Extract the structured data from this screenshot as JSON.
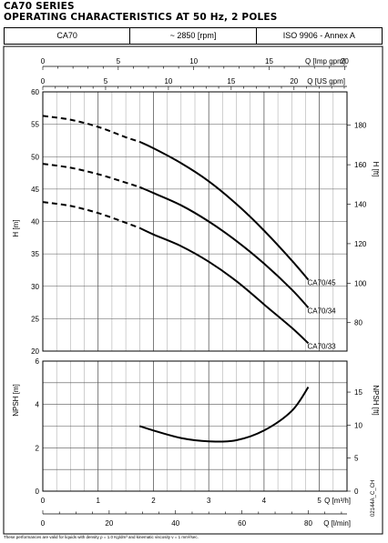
{
  "titles": {
    "line1": "CA70 SERIES",
    "line2": "OPERATING CHARACTERISTICS AT 50 Hz, 2 POLES"
  },
  "header": {
    "model": "CA70",
    "speed": "~ 2850 [rpm]",
    "standard": "ISO 9906 - Annex A"
  },
  "footer": "These performances are valid for liquids with density ρ = 1.0 Kg/dm³ and kinematic viscosity ν = 1 mm²/sec.",
  "drawing_code": "02144A_C_CH",
  "chart_data": [
    {
      "type": "line",
      "name": "head",
      "x_axis": {
        "label": "Q [m³/h]",
        "range": [
          0,
          5.5
        ],
        "ticks": [
          0,
          1,
          2,
          3,
          4,
          5
        ]
      },
      "x_top_imp": {
        "label": "Q [Imp gpm]",
        "range": [
          0,
          20.16
        ],
        "ticks": [
          0,
          5,
          10,
          15,
          20
        ],
        "labels": [
          "0",
          "5",
          "10",
          "15",
          "20"
        ]
      },
      "x_top_us": {
        "label": "Q [US gpm]",
        "range": [
          0,
          24.22
        ],
        "ticks": [
          0,
          5,
          10,
          15,
          20
        ],
        "labels": [
          "0",
          "5",
          "10",
          "15",
          "20"
        ]
      },
      "y_left": {
        "label": "H [m]",
        "range": [
          20,
          60
        ],
        "ticks": [
          20,
          25,
          30,
          35,
          40,
          45,
          50,
          55,
          60
        ],
        "labels": [
          "20",
          "25",
          "30",
          "35",
          "40",
          "45",
          "50",
          "55",
          "60"
        ]
      },
      "y_right": {
        "label": "H [ft]",
        "range": [
          65.6,
          196.9
        ],
        "ticks": [
          80,
          100,
          120,
          140,
          160,
          180
        ],
        "labels": [
          "80",
          "100",
          "120",
          "140",
          "160",
          "180"
        ]
      },
      "grid": true,
      "series": [
        {
          "name": "CA70/45",
          "x": [
            0,
            0.5,
            1.0,
            1.5,
            1.75,
            2.0,
            2.5,
            3.0,
            3.5,
            4.0,
            4.5,
            4.8
          ],
          "y": [
            56.3,
            55.7,
            54.6,
            53.0,
            52.3,
            51.3,
            49.0,
            46.2,
            42.7,
            38.6,
            34.0,
            31.0
          ],
          "dashed_until": 1.75
        },
        {
          "name": "CA70/34",
          "x": [
            0,
            0.5,
            1.0,
            1.5,
            1.75,
            2.0,
            2.5,
            3.0,
            3.5,
            4.0,
            4.5,
            4.8
          ],
          "y": [
            48.9,
            48.3,
            47.3,
            46.0,
            45.3,
            44.4,
            42.5,
            40.0,
            37.0,
            33.5,
            29.5,
            26.7
          ],
          "dashed_until": 1.75
        },
        {
          "name": "CA70/33",
          "x": [
            0,
            0.5,
            1.0,
            1.5,
            1.75,
            2.0,
            2.5,
            3.0,
            3.5,
            4.0,
            4.5,
            4.8
          ],
          "y": [
            43.0,
            42.4,
            41.3,
            39.8,
            39.0,
            38.0,
            36.2,
            33.8,
            30.8,
            27.2,
            23.6,
            21.2
          ],
          "dashed_until": 1.75
        }
      ]
    },
    {
      "type": "line",
      "name": "npsh",
      "x_axis": {
        "label": "Q [m³/h]",
        "range": [
          0,
          5.5
        ],
        "ticks": [
          0,
          1,
          2,
          3,
          4,
          5
        ],
        "labels": [
          "0",
          "1",
          "2",
          "3",
          "4",
          "5"
        ]
      },
      "x_bottom_lmin": {
        "label": "Q [l/min]",
        "range": [
          0,
          91.67
        ],
        "ticks": [
          0,
          20,
          40,
          60,
          80
        ],
        "labels": [
          "0",
          "20",
          "40",
          "60",
          "80"
        ]
      },
      "y_left": {
        "label": "NPSH [m]",
        "range": [
          0,
          6
        ],
        "ticks": [
          0,
          2,
          4,
          6
        ],
        "labels": [
          "0",
          "2",
          "4",
          "6"
        ]
      },
      "y_right": {
        "label": "NPSH [ft]",
        "range": [
          0,
          19.69
        ],
        "ticks": [
          0,
          5,
          10,
          15
        ],
        "labels": [
          "0",
          "5",
          "10",
          "15"
        ]
      },
      "grid": true,
      "series": [
        {
          "name": "NPSH",
          "x": [
            1.75,
            2.0,
            2.5,
            3.0,
            3.5,
            4.0,
            4.5,
            4.8
          ],
          "y": [
            3.0,
            2.8,
            2.45,
            2.3,
            2.35,
            2.8,
            3.7,
            4.8
          ]
        }
      ]
    }
  ]
}
